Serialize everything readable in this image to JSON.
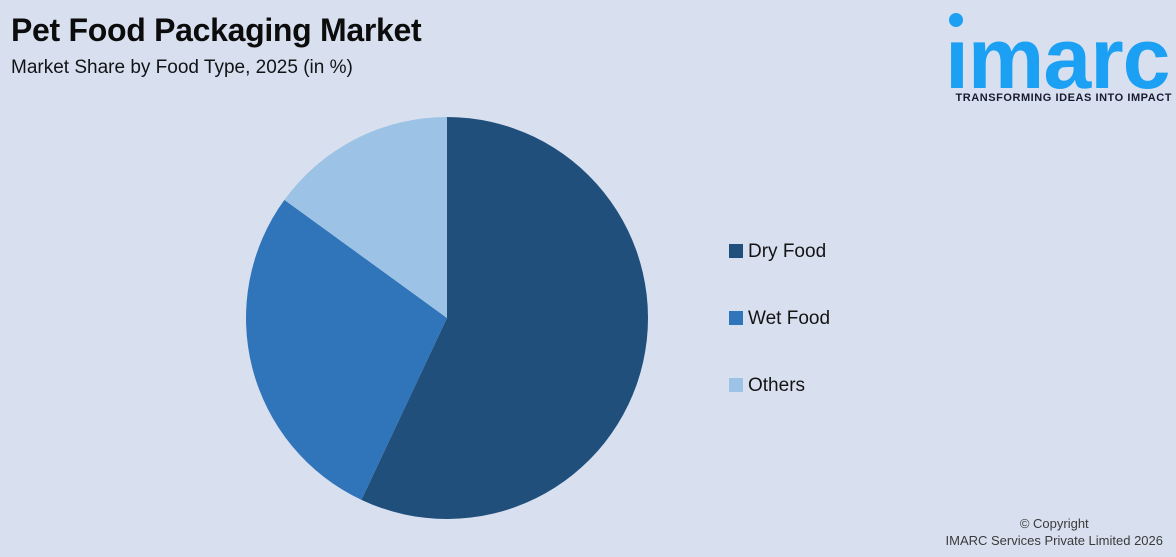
{
  "page": {
    "background": "#D8E0F0"
  },
  "header": {
    "title": "Pet Food Packaging Market",
    "subtitle": "Market Share by Food Type, 2025 (in %)"
  },
  "logo": {
    "brand": "imarc",
    "brand_display": "ımarc",
    "tagline": "TRANSFORMING IDEAS INTO IMPACT",
    "brand_color": "#1BA0F3"
  },
  "chart_data": {
    "type": "pie",
    "title": "Pet Food Packaging Market",
    "subtitle": "Market Share by Food Type, 2025 (in %)",
    "unit": "%",
    "start_angle_deg": 0,
    "direction": "clockwise",
    "legend_position": "right",
    "slices": [
      {
        "label": "Dry Food",
        "value": 57,
        "color": "#204F7C"
      },
      {
        "label": "Wet Food",
        "value": 28,
        "color": "#3074B9"
      },
      {
        "label": "Others",
        "value": 15,
        "color": "#9CC3E5"
      }
    ]
  },
  "footer": {
    "line1": "© Copyright",
    "line2": "IMARC Services Private Limited 2026"
  }
}
